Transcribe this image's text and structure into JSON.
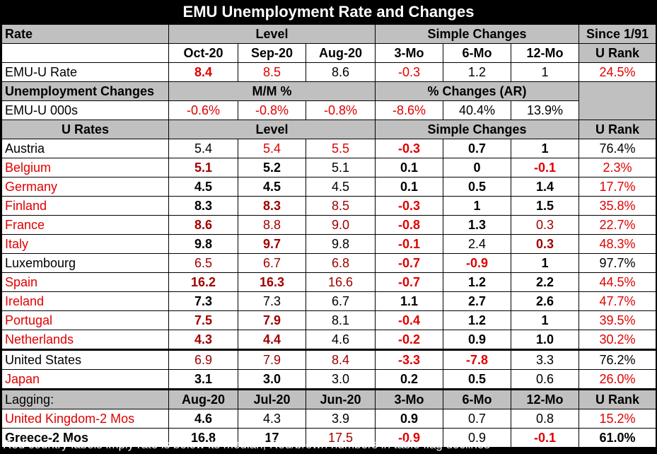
{
  "title": "EMU Unemployment Rate and Changes",
  "h1": {
    "rate": "Rate",
    "level": "Level",
    "simple": "Simple Changes",
    "since": "Since 1/91"
  },
  "h2": {
    "c1": "Oct-20",
    "c2": "Sep-20",
    "c3": "Aug-20",
    "c4": "3-Mo",
    "c5": "6-Mo",
    "c6": "12-Mo",
    "c7": "U Rank"
  },
  "emu_rate": {
    "label": "EMU-U Rate",
    "v": [
      "8.4",
      "8.5",
      "8.6",
      "-0.3",
      "1.2",
      "1",
      "24.5%"
    ]
  },
  "h3": {
    "label": "Unemployment Changes",
    "mm": "M/M %",
    "pct": "% Changes (AR)"
  },
  "emu_000s": {
    "label": "EMU-U 000s",
    "v": [
      "-0.6%",
      "-0.8%",
      "-0.8%",
      "-8.6%",
      "40.4%",
      "13.9%"
    ]
  },
  "h4": {
    "label": "U Rates",
    "level": "Level",
    "simple": "Simple Changes",
    "rank": "U Rank"
  },
  "countries": [
    {
      "label": "Austria",
      "v": [
        "5.4",
        "5.4",
        "5.5",
        "-0.3",
        "0.7",
        "1",
        "76.4%"
      ]
    },
    {
      "label": "Belgium",
      "v": [
        "5.1",
        "5.2",
        "5.1",
        "0.1",
        "0",
        "-0.1",
        "2.3%"
      ]
    },
    {
      "label": "Germany",
      "v": [
        "4.5",
        "4.5",
        "4.5",
        "0.1",
        "0.5",
        "1.4",
        "17.7%"
      ]
    },
    {
      "label": "Finland",
      "v": [
        "8.3",
        "8.3",
        "8.5",
        "-0.3",
        "1",
        "1.5",
        "35.8%"
      ]
    },
    {
      "label": "France",
      "v": [
        "8.6",
        "8.8",
        "9.0",
        "-0.8",
        "1.3",
        "0.3",
        "22.7%"
      ]
    },
    {
      "label": "Italy",
      "v": [
        "9.8",
        "9.7",
        "9.8",
        "-0.1",
        "2.4",
        "0.3",
        "48.3%"
      ]
    },
    {
      "label": "Luxembourg",
      "v": [
        "6.5",
        "6.7",
        "6.8",
        "-0.7",
        "-0.9",
        "1",
        "97.7%"
      ]
    },
    {
      "label": "Spain",
      "v": [
        "16.2",
        "16.3",
        "16.6",
        "-0.7",
        "1.2",
        "2.2",
        "44.5%"
      ]
    },
    {
      "label": "Ireland",
      "v": [
        "7.3",
        "7.3",
        "6.7",
        "1.1",
        "2.7",
        "2.6",
        "47.7%"
      ]
    },
    {
      "label": "Portugal",
      "v": [
        "7.5",
        "7.9",
        "8.1",
        "-0.4",
        "1.2",
        "1",
        "39.5%"
      ]
    },
    {
      "label": "Netherlands",
      "v": [
        "4.3",
        "4.4",
        "4.6",
        "-0.2",
        "0.9",
        "1.0",
        "30.2%"
      ]
    }
  ],
  "others": [
    {
      "label": "United States",
      "v": [
        "6.9",
        "7.9",
        "8.4",
        "-3.3",
        "-7.8",
        "3.3",
        "76.2%"
      ]
    },
    {
      "label": "Japan",
      "v": [
        "3.1",
        "3.0",
        "3.0",
        "0.2",
        "0.5",
        "0.6",
        "26.0%"
      ]
    }
  ],
  "lag_hdr": {
    "label": "Lagging:",
    "c1": "Aug-20",
    "c2": "Jul-20",
    "c3": "Jun-20",
    "c4": "3-Mo",
    "c5": "6-Mo",
    "c6": "12-Mo",
    "c7": "U Rank"
  },
  "lagging": [
    {
      "label": "United Kingdom-2 Mos",
      "v": [
        "4.6",
        "4.3",
        "3.9",
        "0.9",
        "0.7",
        "0.8",
        "15.2%"
      ]
    },
    {
      "label": "Greece-2 Mos",
      "v": [
        "16.8",
        "17",
        "17.5",
        "-0.9",
        "0.9",
        "-0.1",
        "61.0%"
      ]
    }
  ],
  "footnote": "Red country labels imply rate is below its median; Red/brown numbers in table flag declines"
}
